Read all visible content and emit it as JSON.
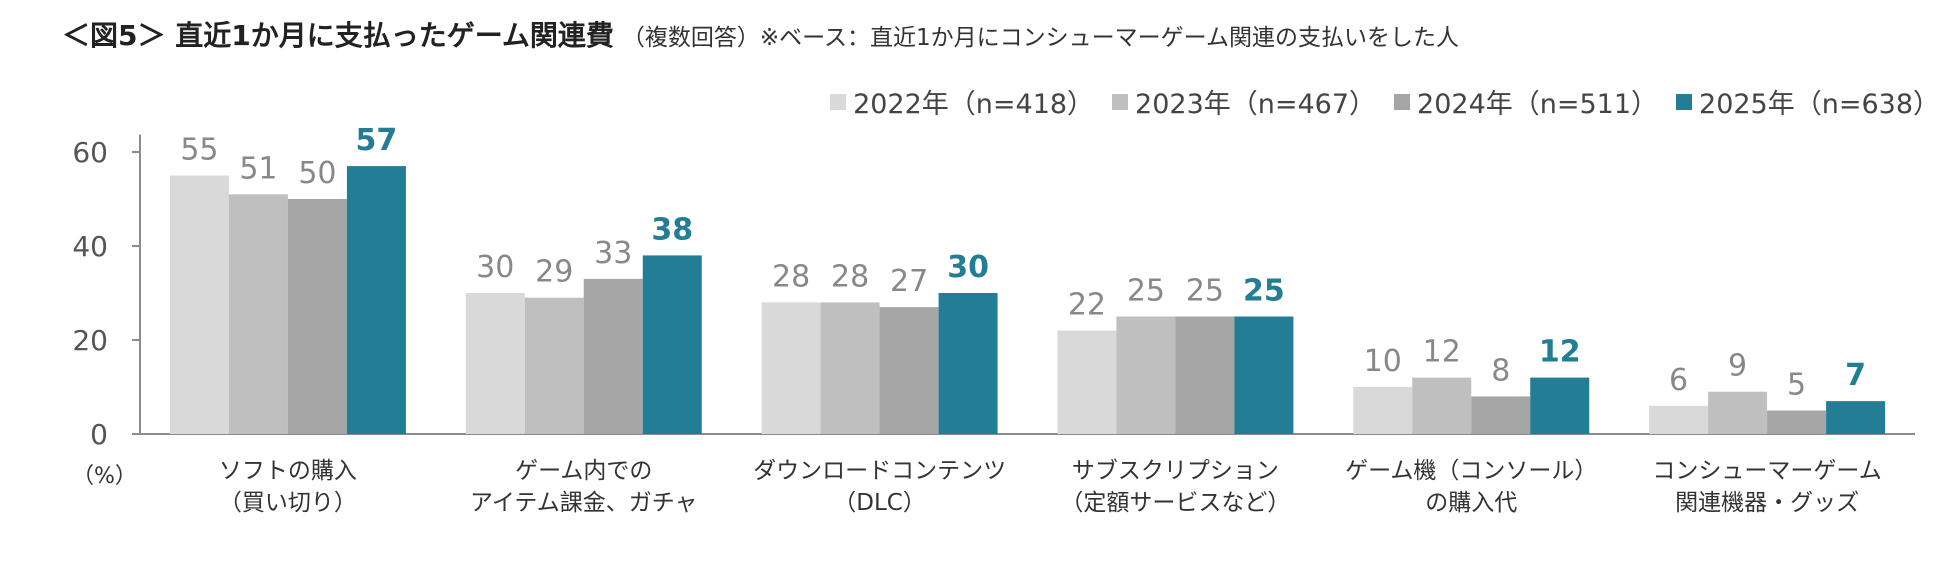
{
  "title": {
    "main": "＜図5＞ 直近1か月に支払ったゲーム関連費",
    "sub": "（複数回答）※ベース：直近1か月にコンシューマーゲーム関連の支払いをした人"
  },
  "unit_label": "（%）",
  "colors": {
    "s2022": "#d9d9d9",
    "s2023": "#bfbfbf",
    "s2024": "#a6a6a6",
    "s2025": "#237d95",
    "axis": "#8c8c8c"
  },
  "chart_data": {
    "type": "bar",
    "categories": [
      [
        "ソフトの購入",
        "（買い切り）"
      ],
      [
        "ゲーム内での",
        "アイテム課金、ガチャ"
      ],
      [
        "ダウンロードコンテンツ",
        "（DLC）"
      ],
      [
        "サブスクリプション",
        "（定額サービスなど）"
      ],
      [
        "ゲーム機（コンソール）",
        "の購入代"
      ],
      [
        "コンシューマーゲーム",
        "関連機器・グッズ"
      ]
    ],
    "series": [
      {
        "name": "2022年（n=418）",
        "values": [
          55,
          30,
          28,
          22,
          10,
          6
        ]
      },
      {
        "name": "2023年（n=467）",
        "values": [
          51,
          29,
          28,
          25,
          12,
          9
        ]
      },
      {
        "name": "2024年（n=511）",
        "values": [
          50,
          33,
          27,
          25,
          8,
          5
        ]
      },
      {
        "name": "2025年（n=638）",
        "values": [
          57,
          38,
          30,
          25,
          12,
          7
        ]
      }
    ],
    "yticks": [
      0,
      20,
      40,
      60
    ],
    "ylim": [
      0,
      65
    ],
    "legend_position": "top-right",
    "grid": false
  }
}
